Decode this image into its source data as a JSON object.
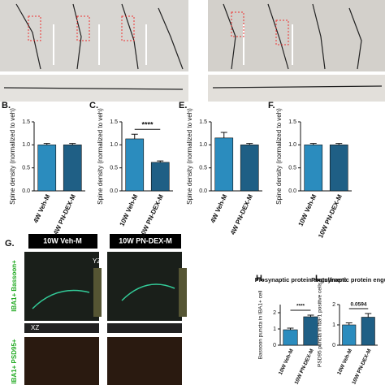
{
  "figure": {
    "g_label": "G.",
    "g_headers": [
      "10W Veh-M",
      "10W PN-DEX-M"
    ],
    "g_row_labels": [
      "IBA1+ Bassoon+",
      "IBA1+ PSD95+"
    ],
    "yz": "YZ",
    "xz": "XZ"
  },
  "chart_data": [
    {
      "type": "bar",
      "panel": "B.",
      "ylabel": "Spine density (normalized to veh)",
      "categories": [
        "4W Veh-M",
        "4W PN-DEX-M"
      ],
      "values": [
        1.0,
        1.0
      ],
      "errors": [
        0.03,
        0.03
      ],
      "colors": [
        "#2b8cbe",
        "#1f5f85"
      ],
      "ylim": [
        0,
        1.5
      ],
      "yticks": [
        {
          "value": 0,
          "label": "0.0"
        },
        {
          "value": 0.5,
          "label": "0.5"
        },
        {
          "value": 1,
          "label": "1.0"
        },
        {
          "value": 1.5,
          "label": "1.5"
        }
      ]
    },
    {
      "type": "bar",
      "panel": "C.",
      "ylabel": "Spine density (normalized to veh)",
      "categories": [
        "10W Veh-M",
        "10W PN-DEX-M"
      ],
      "values": [
        1.13,
        0.62
      ],
      "errors": [
        0.1,
        0.03
      ],
      "colors": [
        "#2b8cbe",
        "#1f5f85"
      ],
      "ylim": [
        0,
        1.5
      ],
      "yticks": [
        {
          "value": 0,
          "label": "0.0"
        },
        {
          "value": 0.5,
          "label": "0.5"
        },
        {
          "value": 1,
          "label": "1.0"
        },
        {
          "value": 1.5,
          "label": "1.5"
        }
      ],
      "annotation": "****"
    },
    {
      "type": "bar",
      "panel": "E.",
      "ylabel": "Spine density (normalized to veh)",
      "categories": [
        "4W Veh-M",
        "4W PN-DEX-M"
      ],
      "values": [
        1.15,
        1.0
      ],
      "errors": [
        0.12,
        0.03
      ],
      "colors": [
        "#2b8cbe",
        "#1f5f85"
      ],
      "ylim": [
        0,
        1.5
      ],
      "yticks": [
        {
          "value": 0,
          "label": "0.0"
        },
        {
          "value": 0.5,
          "label": "0.5"
        },
        {
          "value": 1,
          "label": "1.0"
        },
        {
          "value": 1.5,
          "label": "1.5"
        }
      ]
    },
    {
      "type": "bar",
      "panel": "F.",
      "ylabel": "Spine density (normalized to veh)",
      "categories": [
        "10W Veh-M",
        "10W PN-DEX-M"
      ],
      "values": [
        1.0,
        1.0
      ],
      "errors": [
        0.03,
        0.03
      ],
      "colors": [
        "#2b8cbe",
        "#1f5f85"
      ],
      "ylim": [
        0,
        1.5
      ],
      "yticks": [
        {
          "value": 0,
          "label": "0.0"
        },
        {
          "value": 0.5,
          "label": "0.5"
        },
        {
          "value": 1,
          "label": "1.0"
        },
        {
          "value": 1.5,
          "label": "1.5"
        }
      ]
    },
    {
      "type": "bar",
      "panel": "H.",
      "title": "Presynaptic protein engulfment",
      "ylabel": "Bassoon puncta in IBA1+ cell",
      "categories": [
        "10W Veh-M",
        "10W PN-DEX-M"
      ],
      "values": [
        0.95,
        1.75
      ],
      "errors": [
        0.1,
        0.1
      ],
      "colors": [
        "#2b8cbe",
        "#1f5f85"
      ],
      "ylim": [
        0,
        2.5
      ],
      "yticks": [
        0,
        1,
        2
      ],
      "annotation": "****"
    },
    {
      "type": "bar",
      "panel": "I.",
      "title": "Postsynaptic protein engulfment",
      "ylabel": "PSD95 puncta in Iba-1 positive cells",
      "categories": [
        "10W Veh-M",
        "10W PN-DEX-M"
      ],
      "values": [
        1.0,
        1.38
      ],
      "errors": [
        0.1,
        0.18
      ],
      "colors": [
        "#2b8cbe",
        "#1f5f85"
      ],
      "ylim": [
        0,
        2
      ],
      "yticks": [
        0,
        1,
        2
      ],
      "annotation": "0.0594"
    }
  ]
}
